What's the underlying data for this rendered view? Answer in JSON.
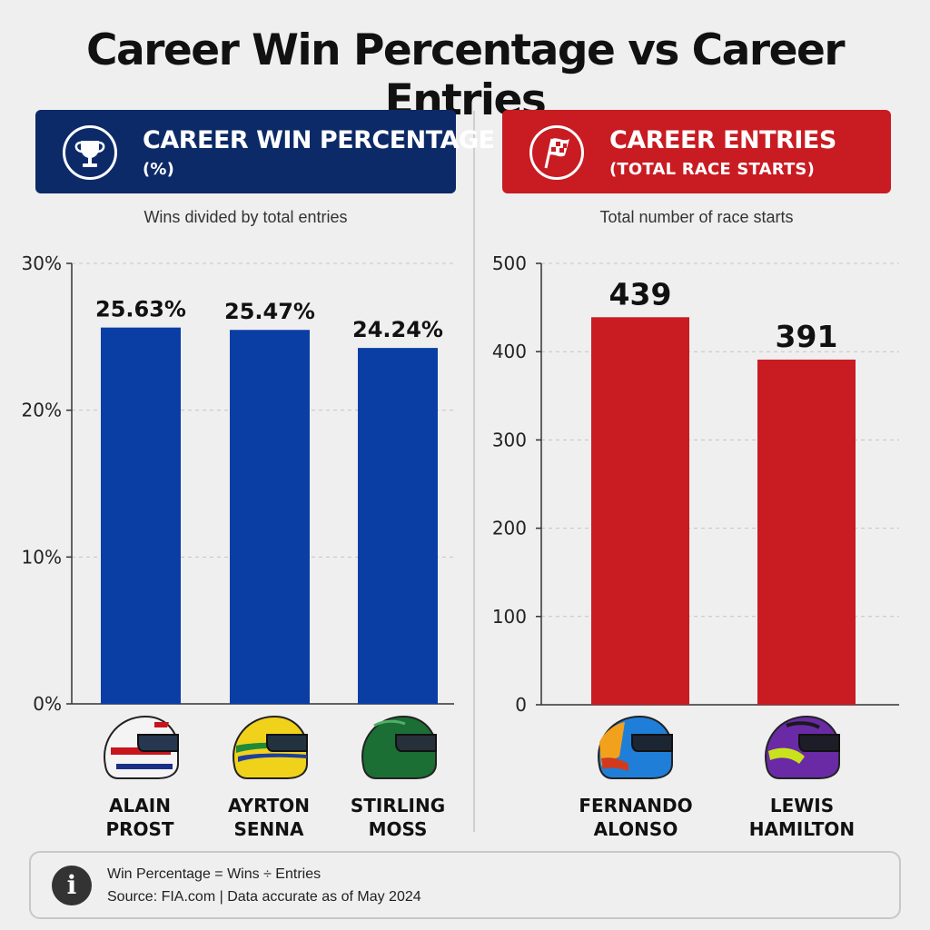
{
  "title": "Career Win Percentage vs Career Entries",
  "colors": {
    "blue": "#0a3ea5",
    "blue_header": "#0d2a68",
    "red": "#c91b22",
    "red_header": "#c91b22"
  },
  "left_panel": {
    "header_title": "CAREER WIN PERCENTAGE",
    "header_subtitle": "(%)",
    "header_icon": "trophy-icon",
    "caption": "Wins divided by total entries"
  },
  "right_panel": {
    "header_title": "CAREER ENTRIES",
    "header_subtitle": "(TOTAL RACE STARTS)",
    "header_icon": "checkered-flag-icon",
    "caption": "Total number of race starts"
  },
  "chart_data": [
    {
      "type": "bar",
      "title": "CAREER WIN PERCENTAGE",
      "categories": [
        "ALAIN PROST",
        "AYRTON SENNA",
        "STIRLING MOSS"
      ],
      "values": [
        25.63,
        25.47,
        24.24
      ],
      "value_labels": [
        "25.63%",
        "25.47%",
        "24.24%"
      ],
      "ylim": [
        0,
        30
      ],
      "yticks": [
        0,
        10,
        20,
        30
      ],
      "ytick_labels": [
        "0%",
        "10%",
        "20%",
        "30%"
      ],
      "grid": true,
      "color": "#0a3ea5"
    },
    {
      "type": "bar",
      "title": "CAREER ENTRIES",
      "categories": [
        "FERNANDO ALONSO",
        "LEWIS HAMILTON"
      ],
      "values": [
        439,
        391
      ],
      "value_labels": [
        "439",
        "391"
      ],
      "ylim": [
        0,
        500
      ],
      "yticks": [
        0,
        100,
        200,
        300,
        400,
        500
      ],
      "ytick_labels": [
        "0",
        "100",
        "200",
        "300",
        "400",
        "500"
      ],
      "grid": true,
      "color": "#c91b22"
    }
  ],
  "drivers": [
    {
      "first": "ALAIN",
      "last": "PROST",
      "icon": "prost-helmet-icon"
    },
    {
      "first": "AYRTON",
      "last": "SENNA",
      "icon": "senna-helmet-icon"
    },
    {
      "first": "STIRLING",
      "last": "MOSS",
      "icon": "moss-helmet-icon"
    },
    {
      "first": "FERNANDO",
      "last": "ALONSO",
      "icon": "alonso-helmet-icon"
    },
    {
      "first": "LEWIS",
      "last": "HAMILTON",
      "icon": "hamilton-helmet-icon"
    }
  ],
  "footer": {
    "formula": "Win Percentage = Wins ÷ Entries",
    "source": "Source: FIA.com  |  Data accurate as of May 2024",
    "icon": "info-icon"
  }
}
